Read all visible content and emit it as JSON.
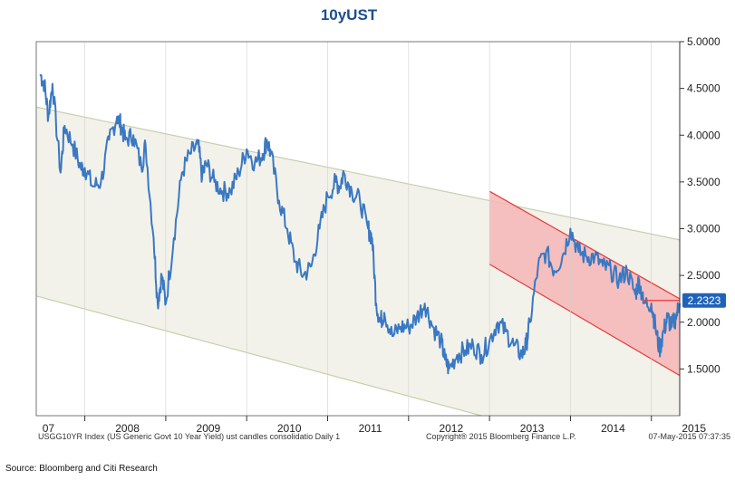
{
  "chart_data": {
    "type": "line",
    "title": "10yUST",
    "ylim": [
      1.0,
      5.0
    ],
    "y_ticks": [
      "5.0000",
      "4.5000",
      "4.0000",
      "3.5000",
      "3.0000",
      "2.5000",
      "2.0000",
      "1.5000"
    ],
    "y_tick_values": [
      5.0,
      4.5,
      4.0,
      3.5,
      3.0,
      2.5,
      2.0,
      1.5
    ],
    "x_range": [
      2007.4,
      2015.35
    ],
    "x_ticks": [
      "07",
      "2008",
      "2009",
      "2010",
      "2011",
      "2012",
      "2013",
      "2014",
      "2015"
    ],
    "x_tick_values": [
      2007.55,
      2008.0,
      2009.0,
      2010.0,
      2011.0,
      2012.0,
      2013.0,
      2014.0,
      2015.0
    ],
    "series": [
      {
        "name": "USGG10YR Index",
        "color": "#3a78c3",
        "x": [
          2007.45,
          2007.5,
          2007.55,
          2007.6,
          2007.7,
          2007.75,
          2007.85,
          2007.95,
          2008.0,
          2008.1,
          2008.2,
          2008.3,
          2008.4,
          2008.45,
          2008.5,
          2008.6,
          2008.7,
          2008.75,
          2008.85,
          2008.9,
          2008.95,
          2009.0,
          2009.1,
          2009.2,
          2009.3,
          2009.4,
          2009.45,
          2009.5,
          2009.6,
          2009.7,
          2009.8,
          2009.9,
          2010.0,
          2010.1,
          2010.2,
          2010.25,
          2010.3,
          2010.4,
          2010.5,
          2010.6,
          2010.7,
          2010.8,
          2010.9,
          2011.0,
          2011.1,
          2011.15,
          2011.2,
          2011.3,
          2011.4,
          2011.5,
          2011.55,
          2011.6,
          2011.65,
          2011.7,
          2011.8,
          2011.9,
          2012.0,
          2012.1,
          2012.2,
          2012.3,
          2012.4,
          2012.45,
          2012.5,
          2012.6,
          2012.7,
          2012.8,
          2012.9,
          2013.0,
          2013.1,
          2013.2,
          2013.3,
          2013.4,
          2013.45,
          2013.5,
          2013.6,
          2013.7,
          2013.8,
          2013.9,
          2014.0,
          2014.1,
          2014.2,
          2014.3,
          2014.4,
          2014.5,
          2014.6,
          2014.7,
          2014.8,
          2014.85,
          2014.9,
          2015.0,
          2015.05,
          2015.1,
          2015.15,
          2015.2,
          2015.25,
          2015.3,
          2015.35
        ],
        "y": [
          4.65,
          4.55,
          4.2,
          4.55,
          3.6,
          4.1,
          3.9,
          3.65,
          3.65,
          3.45,
          3.5,
          3.95,
          4.2,
          4.1,
          3.95,
          4.0,
          3.65,
          3.9,
          2.9,
          2.2,
          2.5,
          2.2,
          2.9,
          3.6,
          3.8,
          3.9,
          3.55,
          3.7,
          3.5,
          3.4,
          3.4,
          3.6,
          3.85,
          3.7,
          3.8,
          3.95,
          3.8,
          3.3,
          3.0,
          2.65,
          2.5,
          2.6,
          3.0,
          3.35,
          3.5,
          3.45,
          3.6,
          3.4,
          3.3,
          3.0,
          2.9,
          2.2,
          2.0,
          2.1,
          1.85,
          1.95,
          1.95,
          2.05,
          2.2,
          1.95,
          1.8,
          1.6,
          1.5,
          1.65,
          1.7,
          1.75,
          1.65,
          1.8,
          2.0,
          1.9,
          1.75,
          1.65,
          1.75,
          2.0,
          2.6,
          2.75,
          2.55,
          2.7,
          3.0,
          2.75,
          2.7,
          2.7,
          2.6,
          2.55,
          2.45,
          2.55,
          2.3,
          2.45,
          2.2,
          2.2,
          1.95,
          1.7,
          1.9,
          2.05,
          1.95,
          2.05,
          2.2
        ],
        "last_value_label": "2.2323"
      }
    ],
    "channels": [
      {
        "name": "long-term channel",
        "upper": [
          [
            2007.55,
            4.3
          ],
          [
            2015.35,
            2.88
          ]
        ],
        "lower": [
          [
            2007.45,
            2.28
          ],
          [
            2012.9,
            0.95
          ]
        ],
        "fill": "#f2f2ea",
        "stroke": "#c7cfae"
      },
      {
        "name": "short-term channel",
        "upper": [
          [
            2013.0,
            3.4
          ],
          [
            2015.35,
            2.25
          ]
        ],
        "lower": [
          [
            2013.0,
            2.62
          ],
          [
            2015.35,
            1.43
          ]
        ],
        "fill": "#f4b6b6",
        "stroke": "#e83a3a"
      }
    ],
    "level_line": {
      "value": 2.2323,
      "x_start": 2014.9,
      "color": "#e83a3a"
    },
    "callout": {
      "text": "2.2323",
      "value": 2.2323,
      "color": "#1f63b8"
    }
  },
  "footer": {
    "left": "USGG10YR Index (US Generic Govt 10 Year Yield) ust candles consolidatio  Daily 1",
    "center": "Copyright® 2015 Bloomberg Finance L.P.",
    "right": "07-May-2015 07:37:35"
  },
  "source": "Source: Bloomberg and Citi Research"
}
